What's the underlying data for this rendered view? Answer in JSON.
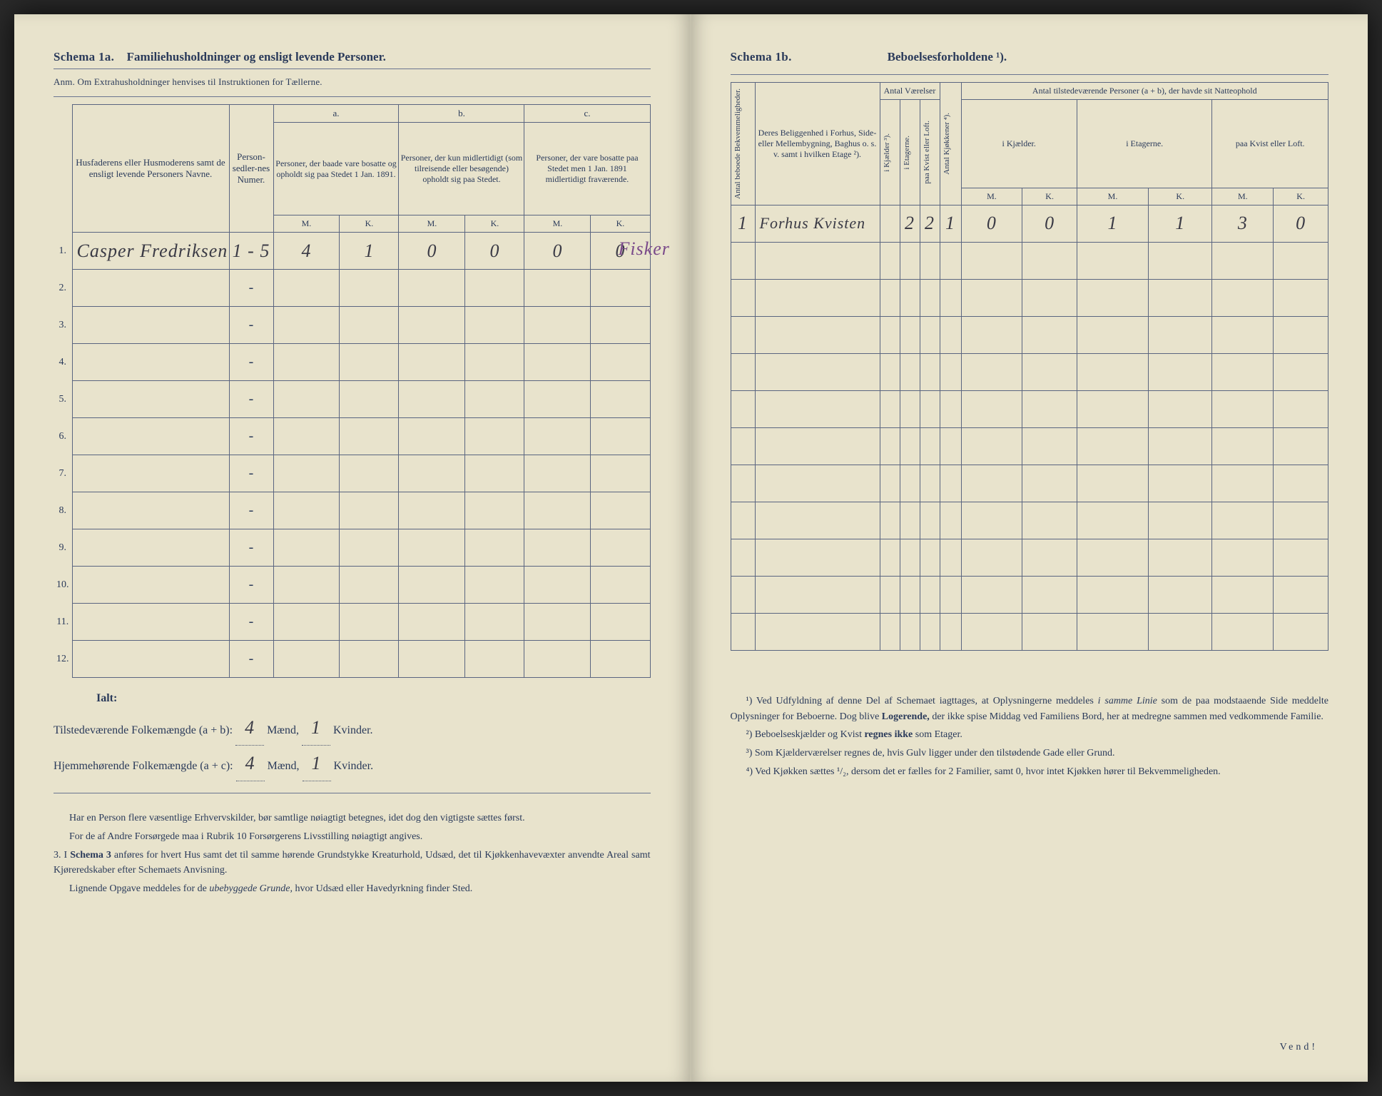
{
  "left": {
    "schema_label": "Schema 1a.",
    "schema_title": "Familiehusholdninger og ensligt levende Personer.",
    "anm": "Anm. Om Extrahusholdninger henvises til Instruktionen for Tællerne.",
    "col_name": "Husfaderens eller Husmoderens samt de ensligt levende Personers Navne.",
    "col_numer": "Person-sedler-nes Numer.",
    "abc": {
      "a": "a.",
      "b": "b.",
      "c": "c."
    },
    "col_a": "Personer, der baade vare bosatte og opholdt sig paa Stedet 1 Jan. 1891.",
    "col_b": "Personer, der kun midlertidigt (som tilreisende eller besøgende) opholdt sig paa Stedet.",
    "col_c": "Personer, der vare bosatte paa Stedet men 1 Jan. 1891 midlertidigt fraværende.",
    "mk": {
      "m": "M.",
      "k": "K."
    },
    "rows": [
      {
        "n": "1.",
        "name": "Casper Fredriksen",
        "numer": "1 - 5",
        "a_m": "4",
        "a_k": "1",
        "b_m": "0",
        "b_k": "0",
        "c_m": "0",
        "c_k": "0",
        "margin": "Fisker"
      },
      {
        "n": "2.",
        "name": "",
        "numer": "-",
        "a_m": "",
        "a_k": "",
        "b_m": "",
        "b_k": "",
        "c_m": "",
        "c_k": "",
        "margin": ""
      },
      {
        "n": "3.",
        "name": "",
        "numer": "-",
        "a_m": "",
        "a_k": "",
        "b_m": "",
        "b_k": "",
        "c_m": "",
        "c_k": "",
        "margin": ""
      },
      {
        "n": "4.",
        "name": "",
        "numer": "-",
        "a_m": "",
        "a_k": "",
        "b_m": "",
        "b_k": "",
        "c_m": "",
        "c_k": "",
        "margin": ""
      },
      {
        "n": "5.",
        "name": "",
        "numer": "-",
        "a_m": "",
        "a_k": "",
        "b_m": "",
        "b_k": "",
        "c_m": "",
        "c_k": "",
        "margin": ""
      },
      {
        "n": "6.",
        "name": "",
        "numer": "-",
        "a_m": "",
        "a_k": "",
        "b_m": "",
        "b_k": "",
        "c_m": "",
        "c_k": "",
        "margin": ""
      },
      {
        "n": "7.",
        "name": "",
        "numer": "-",
        "a_m": "",
        "a_k": "",
        "b_m": "",
        "b_k": "",
        "c_m": "",
        "c_k": "",
        "margin": ""
      },
      {
        "n": "8.",
        "name": "",
        "numer": "-",
        "a_m": "",
        "a_k": "",
        "b_m": "",
        "b_k": "",
        "c_m": "",
        "c_k": "",
        "margin": ""
      },
      {
        "n": "9.",
        "name": "",
        "numer": "-",
        "a_m": "",
        "a_k": "",
        "b_m": "",
        "b_k": "",
        "c_m": "",
        "c_k": "",
        "margin": ""
      },
      {
        "n": "10.",
        "name": "",
        "numer": "-",
        "a_m": "",
        "a_k": "",
        "b_m": "",
        "b_k": "",
        "c_m": "",
        "c_k": "",
        "margin": ""
      },
      {
        "n": "11.",
        "name": "",
        "numer": "-",
        "a_m": "",
        "a_k": "",
        "b_m": "",
        "b_k": "",
        "c_m": "",
        "c_k": "",
        "margin": ""
      },
      {
        "n": "12.",
        "name": "",
        "numer": "-",
        "a_m": "",
        "a_k": "",
        "b_m": "",
        "b_k": "",
        "c_m": "",
        "c_k": "",
        "margin": ""
      }
    ],
    "ialt": "Ialt:",
    "sum1_label": "Tilstedeværende Folkemængde (a + b): ",
    "sum1_m": "4",
    "sum1_mlabel": " Mænd, ",
    "sum1_k": "1",
    "sum1_klabel": " Kvinder.",
    "sum2_label": "Hjemmehørende Folkemængde (a + c): ",
    "sum2_m": "4",
    "sum2_k": "1",
    "fn1": "Har en Person flere væsentlige Erhvervskilder, bør samtlige nøiagtigt betegnes, idet dog den vigtigste sættes først.",
    "fn2": "For de af Andre Forsørgede maa i Rubrik 10 Forsørgerens Livsstilling nøiagtigt angives.",
    "fn3_prefix": "3. I ",
    "fn3_bold": "Schema 3",
    "fn3_rest": " anføres for hvert Hus samt det til samme hørende Grundstykke Kreaturhold, Udsæd, det til Kjøkkenhavevæxter anvendte Areal samt Kjøreredskaber efter Schemaets Anvisning.",
    "fn4_a": "Lignende Opgave meddeles for de ",
    "fn4_i": "ubebyggede Grunde,",
    "fn4_b": " hvor Udsæd eller Havedyrkning finder Sted."
  },
  "right": {
    "schema_label": "Schema 1b.",
    "schema_title": "Beboelsesforholdene ¹).",
    "col1": "Antal beboede Bekvemmeligheder.",
    "col2": "Deres Beliggenhed i Forhus, Side- eller Mellembygning, Baghus o. s. v. samt i hvilken Etage ²).",
    "grp_vaer": "Antal Værelser",
    "col3": "i Kjælder ³).",
    "col4": "i Etagerne.",
    "col5": "paa Kvist eller Loft.",
    "col6": "Antal Kjøkkener ⁴).",
    "grp_pers": "Antal tilstedeværende Personer (a + b), der havde sit Natteophold",
    "col7": "i Kjælder.",
    "col8": "i Etagerne.",
    "col9": "paa Kvist eller Loft.",
    "mk": {
      "m": "M.",
      "k": "K."
    },
    "rows": [
      {
        "n": "1",
        "loc": "Forhus Kvisten",
        "v1": "",
        "v2": "2",
        "v3": "2",
        "kj": "1",
        "p1m": "0",
        "p1k": "0",
        "p2m": "1",
        "p2k": "1",
        "p3m": "3",
        "p3k": "0"
      },
      {
        "n": "",
        "loc": "",
        "v1": "",
        "v2": "",
        "v3": "",
        "kj": "",
        "p1m": "",
        "p1k": "",
        "p2m": "",
        "p2k": "",
        "p3m": "",
        "p3k": ""
      },
      {
        "n": "",
        "loc": "",
        "v1": "",
        "v2": "",
        "v3": "",
        "kj": "",
        "p1m": "",
        "p1k": "",
        "p2m": "",
        "p2k": "",
        "p3m": "",
        "p3k": ""
      },
      {
        "n": "",
        "loc": "",
        "v1": "",
        "v2": "",
        "v3": "",
        "kj": "",
        "p1m": "",
        "p1k": "",
        "p2m": "",
        "p2k": "",
        "p3m": "",
        "p3k": ""
      },
      {
        "n": "",
        "loc": "",
        "v1": "",
        "v2": "",
        "v3": "",
        "kj": "",
        "p1m": "",
        "p1k": "",
        "p2m": "",
        "p2k": "",
        "p3m": "",
        "p3k": ""
      },
      {
        "n": "",
        "loc": "",
        "v1": "",
        "v2": "",
        "v3": "",
        "kj": "",
        "p1m": "",
        "p1k": "",
        "p2m": "",
        "p2k": "",
        "p3m": "",
        "p3k": ""
      },
      {
        "n": "",
        "loc": "",
        "v1": "",
        "v2": "",
        "v3": "",
        "kj": "",
        "p1m": "",
        "p1k": "",
        "p2m": "",
        "p2k": "",
        "p3m": "",
        "p3k": ""
      },
      {
        "n": "",
        "loc": "",
        "v1": "",
        "v2": "",
        "v3": "",
        "kj": "",
        "p1m": "",
        "p1k": "",
        "p2m": "",
        "p2k": "",
        "p3m": "",
        "p3k": ""
      },
      {
        "n": "",
        "loc": "",
        "v1": "",
        "v2": "",
        "v3": "",
        "kj": "",
        "p1m": "",
        "p1k": "",
        "p2m": "",
        "p2k": "",
        "p3m": "",
        "p3k": ""
      },
      {
        "n": "",
        "loc": "",
        "v1": "",
        "v2": "",
        "v3": "",
        "kj": "",
        "p1m": "",
        "p1k": "",
        "p2m": "",
        "p2k": "",
        "p3m": "",
        "p3k": ""
      },
      {
        "n": "",
        "loc": "",
        "v1": "",
        "v2": "",
        "v3": "",
        "kj": "",
        "p1m": "",
        "p1k": "",
        "p2m": "",
        "p2k": "",
        "p3m": "",
        "p3k": ""
      },
      {
        "n": "",
        "loc": "",
        "v1": "",
        "v2": "",
        "v3": "",
        "kj": "",
        "p1m": "",
        "p1k": "",
        "p2m": "",
        "p2k": "",
        "p3m": "",
        "p3k": ""
      }
    ],
    "fn1_a": "¹) Ved Udfyldning af denne Del af Schemaet iagttages, at Oplysningerne meddeles ",
    "fn1_i": "i samme Linie",
    "fn1_b": " som de paa modstaaende Side meddelte Oplysninger for Beboerne. Dog blive ",
    "fn1_bold": "Logerende,",
    "fn1_c": " der ikke spise Middag ved Familiens Bord, her at medregne sammen med vedkommende Familie.",
    "fn2_a": "²) Beboelseskjælder og Kvist ",
    "fn2_bold": "regnes ikke",
    "fn2_b": " som Etager.",
    "fn3": "³) Som Kjælderværelser regnes de, hvis Gulv ligger under den tilstødende Gade eller Grund.",
    "fn4": "⁴) Ved Kjøkken sættes ¹/₂, dersom det er fælles for 2 Familier, samt 0, hvor intet Kjøkken hører til Bekvemmeligheden.",
    "vend": "Vend!"
  },
  "style": {
    "paper_bg": "#e8e3cc",
    "ink": "#2a3a5a",
    "border": "#5a6580",
    "hand_ink": "#3a3a45",
    "hand_purple": "#7a4a8a"
  }
}
